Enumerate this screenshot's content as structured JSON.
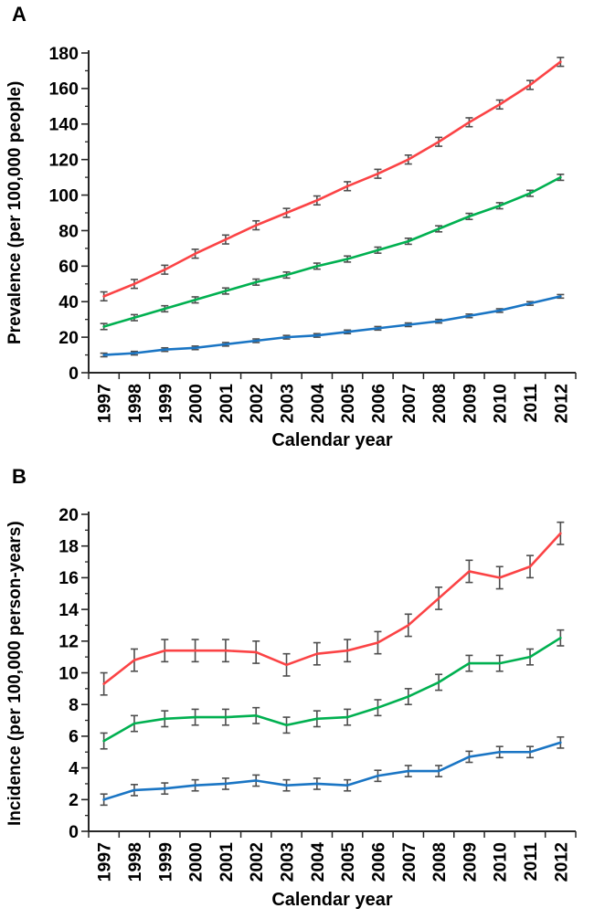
{
  "figure": {
    "background": "#ffffff",
    "axis_color": "#262626",
    "tick_label_color": "#000000"
  },
  "chart_data": [
    {
      "panel": "A",
      "type": "line",
      "title": "",
      "xlabel": "Calendar year",
      "ylabel": "Prevalence (per 100,000 people)",
      "x_categories": [
        "1997",
        "1998",
        "1999",
        "2000",
        "2001",
        "2002",
        "2003",
        "2004",
        "2005",
        "2006",
        "2007",
        "2008",
        "2009",
        "2010",
        "2011",
        "2012"
      ],
      "ylim": [
        0,
        180
      ],
      "y_major_ticks": [
        0,
        20,
        40,
        60,
        80,
        100,
        120,
        140,
        160,
        180
      ],
      "y_minor_tick_step": 10,
      "grid": false,
      "legend": "none",
      "error_bars": true,
      "error_bar_color": "#4d4d4d",
      "series": [
        {
          "name": "red-top-series",
          "color": "#fb4345",
          "values": [
            43,
            50,
            58,
            67,
            75,
            83,
            90,
            97,
            105,
            112,
            120,
            130,
            141,
            151,
            162,
            175
          ],
          "error_half_width": 2.5
        },
        {
          "name": "green-middle-series",
          "color": "#00b050",
          "values": [
            26,
            31,
            36,
            41,
            46,
            51,
            55,
            60,
            64,
            69,
            74,
            81,
            88,
            94,
            101,
            110
          ],
          "error_half_width": 1.7
        },
        {
          "name": "blue-bottom-series",
          "color": "#1a75c4",
          "values": [
            10,
            11,
            13,
            14,
            16,
            18,
            20,
            21,
            23,
            25,
            27,
            29,
            32,
            35,
            39,
            43
          ],
          "error_half_width": 1.0
        }
      ]
    },
    {
      "panel": "B",
      "type": "line",
      "title": "",
      "xlabel": "Calendar year",
      "ylabel": "Incidence (per 100,000 person-years)",
      "x_categories": [
        "1997",
        "1998",
        "1999",
        "2000",
        "2001",
        "2002",
        "2003",
        "2004",
        "2005",
        "2006",
        "2007",
        "2008",
        "2009",
        "2010",
        "2011",
        "2012"
      ],
      "ylim": [
        0,
        20
      ],
      "y_major_ticks": [
        0,
        2,
        4,
        6,
        8,
        10,
        12,
        14,
        16,
        18,
        20
      ],
      "y_minor_tick_step": 1,
      "grid": false,
      "legend": "none",
      "error_bars": true,
      "error_bar_color": "#4d4d4d",
      "series": [
        {
          "name": "red-top-series",
          "color": "#fb4345",
          "values": [
            9.3,
            10.8,
            11.4,
            11.4,
            11.4,
            11.3,
            10.5,
            11.2,
            11.4,
            11.9,
            13.0,
            14.7,
            16.4,
            16.0,
            16.7,
            18.8
          ],
          "error_half_width": 0.7
        },
        {
          "name": "green-middle-series",
          "color": "#00b050",
          "values": [
            5.7,
            6.8,
            7.1,
            7.2,
            7.2,
            7.3,
            6.7,
            7.1,
            7.2,
            7.8,
            8.5,
            9.4,
            10.6,
            10.6,
            11.0,
            12.2
          ],
          "error_half_width": 0.5
        },
        {
          "name": "blue-bottom-series",
          "color": "#1a75c4",
          "values": [
            2.0,
            2.6,
            2.7,
            2.9,
            3.0,
            3.2,
            2.9,
            3.0,
            2.9,
            3.5,
            3.8,
            3.8,
            4.7,
            5.0,
            5.0,
            5.6
          ],
          "error_half_width": 0.35
        }
      ]
    }
  ]
}
